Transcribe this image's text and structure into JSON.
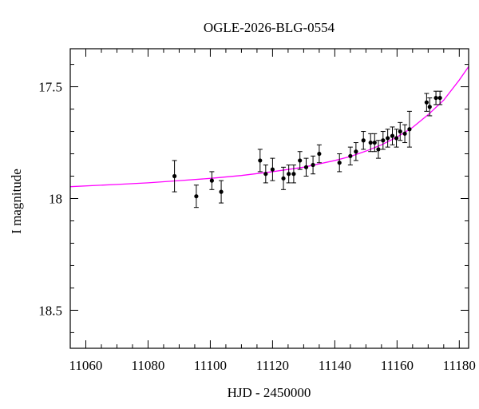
{
  "chart_data": {
    "type": "scatter",
    "title": "OGLE-2026-BLG-0554",
    "xlabel": "HJD - 2450000",
    "ylabel": "I magnitude",
    "xlim": [
      11055,
      11183
    ],
    "ylim": [
      18.67,
      17.33
    ],
    "y_inverted": true,
    "x_ticks": [
      11060,
      11080,
      11100,
      11120,
      11140,
      11160,
      11180
    ],
    "y_ticks": [
      17.5,
      18,
      18.5
    ],
    "y_tick_labels": [
      "17.5",
      "18",
      "18.5"
    ],
    "grid": false,
    "series": [
      {
        "marker": "filled-circle",
        "color": "#000000",
        "points": [
          {
            "x": 11088.5,
            "y": 17.9,
            "err": 0.07
          },
          {
            "x": 11095.5,
            "y": 17.99,
            "err": 0.05
          },
          {
            "x": 11100.5,
            "y": 17.92,
            "err": 0.04
          },
          {
            "x": 11103.5,
            "y": 17.97,
            "err": 0.05
          },
          {
            "x": 11116.0,
            "y": 17.83,
            "err": 0.05
          },
          {
            "x": 11117.8,
            "y": 17.89,
            "err": 0.04
          },
          {
            "x": 11120.0,
            "y": 17.87,
            "err": 0.05
          },
          {
            "x": 11123.5,
            "y": 17.91,
            "err": 0.05
          },
          {
            "x": 11125.2,
            "y": 17.89,
            "err": 0.04
          },
          {
            "x": 11126.8,
            "y": 17.89,
            "err": 0.04
          },
          {
            "x": 11128.8,
            "y": 17.83,
            "err": 0.04
          },
          {
            "x": 11130.8,
            "y": 17.86,
            "err": 0.04
          },
          {
            "x": 11133.0,
            "y": 17.85,
            "err": 0.04
          },
          {
            "x": 11135.0,
            "y": 17.8,
            "err": 0.04
          },
          {
            "x": 11141.5,
            "y": 17.84,
            "err": 0.04
          },
          {
            "x": 11145.0,
            "y": 17.81,
            "err": 0.04
          },
          {
            "x": 11146.8,
            "y": 17.79,
            "err": 0.04
          },
          {
            "x": 11149.2,
            "y": 17.74,
            "err": 0.04
          },
          {
            "x": 11151.5,
            "y": 17.75,
            "err": 0.04
          },
          {
            "x": 11152.8,
            "y": 17.75,
            "err": 0.04
          },
          {
            "x": 11154.0,
            "y": 17.78,
            "err": 0.04
          },
          {
            "x": 11155.5,
            "y": 17.74,
            "err": 0.04
          },
          {
            "x": 11157.0,
            "y": 17.73,
            "err": 0.04
          },
          {
            "x": 11158.5,
            "y": 17.72,
            "err": 0.04
          },
          {
            "x": 11159.8,
            "y": 17.73,
            "err": 0.04
          },
          {
            "x": 11161.0,
            "y": 17.7,
            "err": 0.04
          },
          {
            "x": 11162.5,
            "y": 17.71,
            "err": 0.04
          },
          {
            "x": 11164.0,
            "y": 17.69,
            "err": 0.08
          },
          {
            "x": 11169.5,
            "y": 17.57,
            "err": 0.04
          },
          {
            "x": 11170.5,
            "y": 17.59,
            "err": 0.04
          },
          {
            "x": 11172.5,
            "y": 17.55,
            "err": 0.03
          },
          {
            "x": 11173.8,
            "y": 17.55,
            "err": 0.03
          }
        ]
      },
      {
        "type": "line",
        "color": "#ff00ff",
        "points": [
          {
            "x": 11055,
            "y": 17.947
          },
          {
            "x": 11070,
            "y": 17.937
          },
          {
            "x": 11080,
            "y": 17.93
          },
          {
            "x": 11090,
            "y": 17.92
          },
          {
            "x": 11100,
            "y": 17.91
          },
          {
            "x": 11110,
            "y": 17.897
          },
          {
            "x": 11120,
            "y": 17.88
          },
          {
            "x": 11130,
            "y": 17.86
          },
          {
            "x": 11140,
            "y": 17.83
          },
          {
            "x": 11145,
            "y": 17.812
          },
          {
            "x": 11150,
            "y": 17.788
          },
          {
            "x": 11155,
            "y": 17.76
          },
          {
            "x": 11160,
            "y": 17.725
          },
          {
            "x": 11165,
            "y": 17.682
          },
          {
            "x": 11170,
            "y": 17.625
          },
          {
            "x": 11175,
            "y": 17.56
          },
          {
            "x": 11180,
            "y": 17.47
          },
          {
            "x": 11183,
            "y": 17.41
          }
        ]
      }
    ]
  }
}
